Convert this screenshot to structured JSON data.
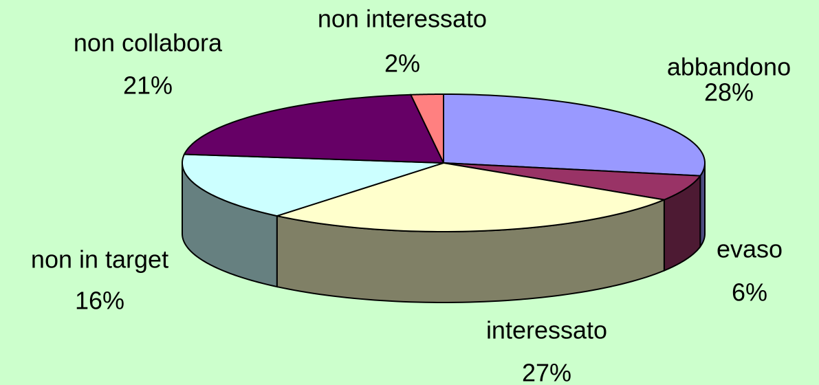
{
  "chart_data": {
    "type": "pie",
    "categories": [
      "abbandono",
      "evaso",
      "interessato",
      "non in target",
      "non collabora",
      "non interessato"
    ],
    "values": [
      28,
      6,
      27,
      16,
      21,
      2
    ],
    "value_labels": [
      "28%",
      "6%",
      "27%",
      "16%",
      "21%",
      "2%"
    ],
    "colors": [
      "#9999ff",
      "#993366",
      "#ffffcc",
      "#ccffff",
      "#660066",
      "#ff8080"
    ]
  }
}
